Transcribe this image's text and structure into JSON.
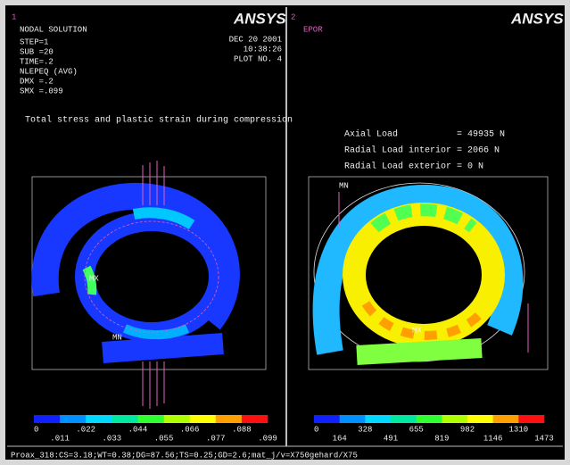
{
  "left_panel": {
    "window_number": "1",
    "logo": "ANSYS",
    "header_lines": [
      "NODAL SOLUTION",
      "STEP=1",
      "SUB =20",
      "TIME=.2",
      "NLEPEQ    (AVG)",
      "DMX =.2",
      "SMX =.099"
    ],
    "date": "DEC 20 2001",
    "time": "10:38:26",
    "plot_no": "PLOT NO.   4",
    "max_label": "MX",
    "min_label": "MN",
    "legend_top": [
      "0",
      ".022",
      ".044",
      ".066",
      ".088"
    ],
    "legend_bottom": [
      ".011",
      ".033",
      ".055",
      ".077",
      ".099"
    ]
  },
  "right_panel": {
    "window_number": "2",
    "logo": "ANSYS",
    "result": "EPOR",
    "max_label": "MX",
    "min_label": "MN",
    "loads": [
      "Axial Load           = 49935 N",
      "Radial Load interior = 2066 N",
      "Radial Load exterior = 0 N"
    ],
    "legend_top": [
      "0",
      "328",
      "655",
      "982",
      "1310"
    ],
    "legend_bottom": [
      "164",
      "491",
      "819",
      "1146",
      "1473"
    ]
  },
  "caption": "Total stress and plastic strain during compression",
  "footer": "Proax_318:CS=3.18;WT=0.38;DG=87.56;TS=0.25;GD=2.6;mat_j/v=X750gehard/X75"
}
